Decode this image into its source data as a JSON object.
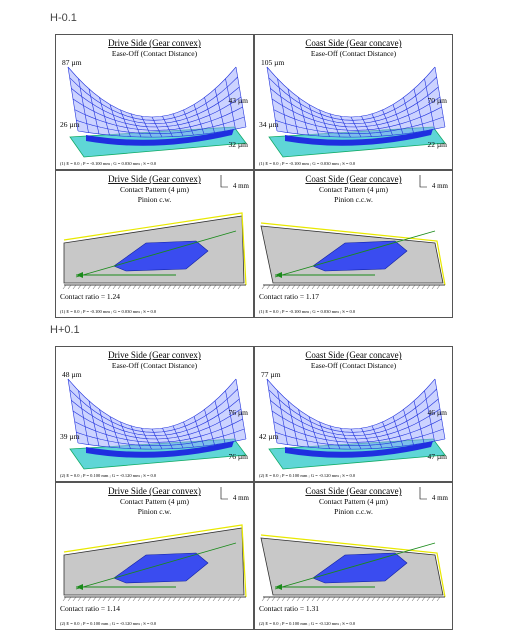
{
  "groups": [
    {
      "label": "H-0.1",
      "panels": [
        {
          "kind": "ease",
          "title": "Drive Side  (Gear convex)",
          "subtitle": "Ease-Off (Contact Distance)",
          "labels": [
            "87 µm",
            "43 µm",
            "26 µm",
            "32 µm"
          ],
          "footnote": "(1)  E = 0.0 ;  P = -0.100 mm ;  G = 0.030 mm ;  S = 0.0"
        },
        {
          "kind": "ease",
          "title": "Coast Side  (Gear concave)",
          "subtitle": "Ease-Off (Contact Distance)",
          "labels": [
            "105 µm",
            "70 µm",
            "34 µm",
            "22 µm"
          ],
          "footnote": "(1)  E = 0.0 ;  P = -0.100 mm ;  G = 0.030 mm ;  S = 0.0"
        },
        {
          "kind": "contact",
          "title": "Drive Side  (Gear convex)",
          "subtitle": "Contact Pattern  (4 µm)",
          "rotation": "Pinion c.w.",
          "scale": "4 mm",
          "ratio": "Contact ratio = 1.24",
          "footnote": "(1)  E = 0.0 ;  P = -0.100 mm ;  G = 0.030 mm ;  S = 0.0"
        },
        {
          "kind": "contact",
          "title": "Coast Side  (Gear concave)",
          "subtitle": "Contact Pattern  (4 µm)",
          "rotation": "Pinion c.c.w.",
          "scale": "4 mm",
          "ratio": "Contact ratio = 1.17",
          "footnote": "(1)  E = 0.0 ;  P = -0.100 mm ;  G = 0.030 mm ;  S = 0.0"
        }
      ]
    },
    {
      "label": "H+0.1",
      "panels": [
        {
          "kind": "ease",
          "title": "Drive Side  (Gear convex)",
          "subtitle": "Ease-Off (Contact Distance)",
          "labels": [
            "48 µm",
            "76 µm",
            "39 µm",
            "76 µm"
          ],
          "footnote": "(2)  E = 0.0 ;  P = 0.100 mm ;  G = -0.120 mm ;  S = 0.0"
        },
        {
          "kind": "ease",
          "title": "Coast Side  (Gear concave)",
          "subtitle": "Ease-Off (Contact Distance)",
          "labels": [
            "77 µm",
            "46 µm",
            "42 µm",
            "47 µm"
          ],
          "footnote": "(2)  E = 0.0 ;  P = 0.100 mm ;  G = -0.120 mm ;  S = 0.0"
        },
        {
          "kind": "contact",
          "title": "Drive Side  (Gear convex)",
          "subtitle": "Contact Pattern  (4 µm)",
          "rotation": "Pinion c.w.",
          "scale": "4 mm",
          "ratio": "Contact ratio = 1.14",
          "footnote": "(2)  E = 0.0 ;  P = 0.100 mm ;  G = -0.120 mm ;  S = 0.0"
        },
        {
          "kind": "contact",
          "title": "Coast Side  (Gear concave)",
          "subtitle": "Contact Pattern  (4 µm)",
          "rotation": "Pinion c.c.w.",
          "scale": "4 mm",
          "ratio": "Contact ratio = 1.31",
          "footnote": "(2)  E = 0.0 ;  P = 0.100 mm ;  G = -0.120 mm ;  S = 0.0"
        }
      ]
    }
  ]
}
